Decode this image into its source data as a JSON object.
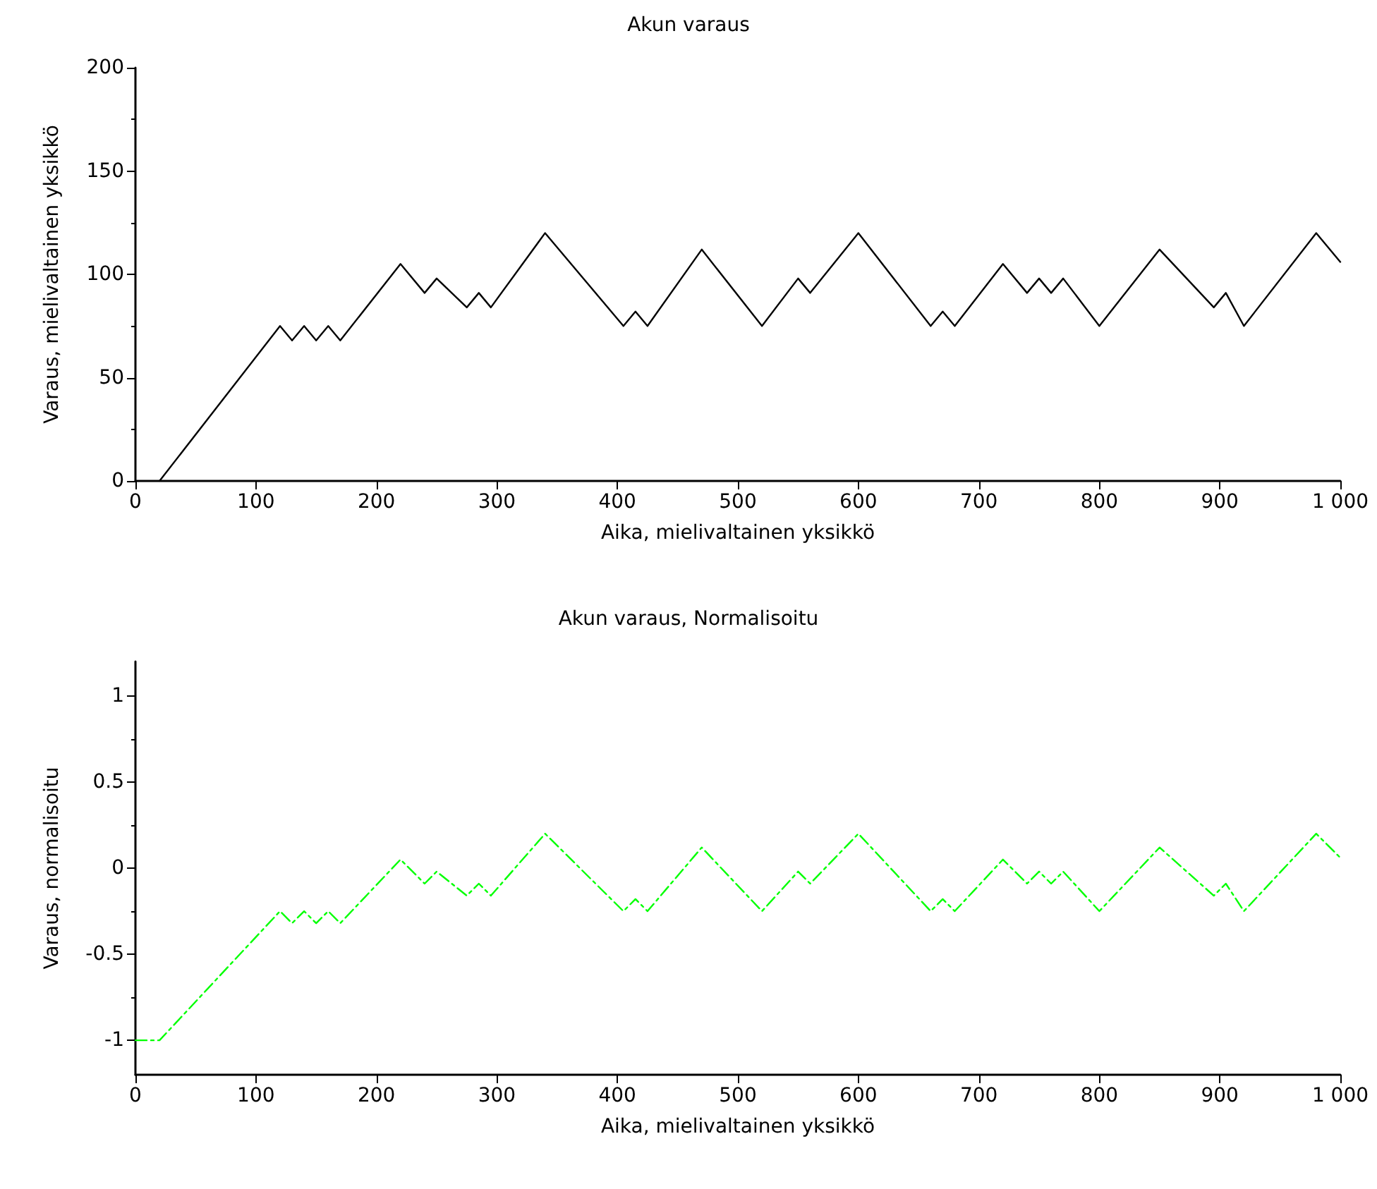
{
  "chart_data": [
    {
      "type": "line",
      "title": "Akun varaus",
      "xlabel": "Aika, mielivaltainen yksikkö",
      "ylabel": "Varaus, mielivaltainen yksikkö",
      "grid": false,
      "marker": "none",
      "line_style": "solid",
      "xlim": [
        0,
        1000
      ],
      "xticks": [
        0,
        100,
        200,
        300,
        400,
        500,
        600,
        700,
        800,
        900,
        {
          "value": 1000,
          "label": "1 000"
        }
      ],
      "ylim": [
        0,
        200
      ],
      "yticks": [
        0,
        50,
        100,
        150,
        200
      ],
      "series": [
        {
          "color": "#000000",
          "x": [
            20,
            120,
            130,
            140,
            150,
            160,
            170,
            220,
            240,
            250,
            275,
            285,
            295,
            340,
            405,
            415,
            425,
            470,
            520,
            550,
            560,
            600,
            660,
            670,
            680,
            720,
            740,
            750,
            760,
            770,
            800,
            850,
            895,
            905,
            920,
            980,
            1000
          ],
          "values": [
            0,
            75,
            68,
            75,
            68,
            75,
            68,
            105,
            91,
            98,
            84,
            91,
            84,
            120,
            75,
            82,
            75,
            112,
            75,
            98,
            91,
            120,
            75,
            82,
            75,
            105,
            91,
            98,
            91,
            98,
            75,
            112,
            84,
            91,
            75,
            120,
            106
          ]
        }
      ]
    },
    {
      "type": "line",
      "title": "Akun varaus, Normalisoitu",
      "xlabel": "Aika, mielivaltainen yksikkö",
      "ylabel": "Varaus, normalisoitu",
      "grid": false,
      "marker": "none",
      "line_style": "dashed",
      "xlim": [
        0,
        1000
      ],
      "xticks": [
        0,
        100,
        200,
        300,
        400,
        500,
        600,
        700,
        800,
        900,
        {
          "value": 1000,
          "label": "1 000"
        }
      ],
      "ylim": [
        -1.2,
        1.2
      ],
      "yticks": [
        -1,
        -0.5,
        0,
        0.5,
        1
      ],
      "series": [
        {
          "color": "#00ff00",
          "x": [
            0,
            20,
            120,
            130,
            140,
            150,
            160,
            170,
            220,
            240,
            250,
            275,
            285,
            295,
            340,
            405,
            415,
            425,
            470,
            520,
            550,
            560,
            600,
            660,
            670,
            680,
            720,
            740,
            750,
            760,
            770,
            800,
            850,
            895,
            905,
            920,
            980,
            1000
          ],
          "values": [
            -1,
            -1,
            -0.25,
            -0.32,
            -0.25,
            -0.32,
            -0.25,
            -0.32,
            0.05,
            -0.09,
            -0.02,
            -0.16,
            -0.09,
            -0.16,
            0.2,
            -0.25,
            -0.18,
            -0.25,
            0.12,
            -0.25,
            -0.02,
            -0.09,
            0.2,
            -0.25,
            -0.18,
            -0.25,
            0.05,
            -0.09,
            -0.02,
            -0.09,
            -0.02,
            -0.25,
            0.12,
            -0.16,
            -0.09,
            -0.25,
            0.2,
            0.06
          ]
        }
      ]
    }
  ]
}
